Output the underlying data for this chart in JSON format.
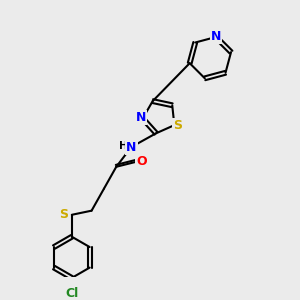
{
  "background_color": "#ebebeb",
  "bond_color": "#000000",
  "atom_colors": {
    "N": "#0000ff",
    "O": "#ff0000",
    "S": "#ccaa00",
    "Cl": "#228822",
    "H": "#000000",
    "C": "#000000"
  },
  "figsize": [
    3.0,
    3.0
  ],
  "dpi": 100
}
